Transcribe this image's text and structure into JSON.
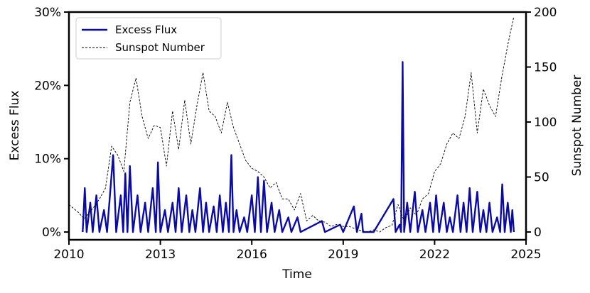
{
  "chart_data": {
    "type": "line",
    "xlabel": "Time",
    "ylabel": "Excess Flux",
    "y2label": "Sunspot Number",
    "xlim": [
      2010,
      2025
    ],
    "xticks": [
      2010,
      2013,
      2016,
      2019,
      2022,
      2025
    ],
    "ylim": [
      -1.06,
      30
    ],
    "yticks": [
      {
        "value": 0,
        "label": "0%"
      },
      {
        "value": 10,
        "label": "10%"
      },
      {
        "value": 20,
        "label": "20%"
      },
      {
        "value": 30,
        "label": "30%"
      }
    ],
    "y2lim": [
      -7.1,
      200
    ],
    "y2ticks": [
      0,
      50,
      100,
      150,
      200
    ],
    "legend": "upper left",
    "series": [
      {
        "name": "Excess Flux",
        "color": "#0a0aa8",
        "x": [
          2010.45,
          2010.52,
          2010.58,
          2010.7,
          2010.78,
          2010.9,
          2011.0,
          2011.15,
          2011.25,
          2011.45,
          2011.55,
          2011.7,
          2011.78,
          2011.85,
          2011.92,
          2012.0,
          2012.1,
          2012.25,
          2012.35,
          2012.5,
          2012.6,
          2012.75,
          2012.85,
          2012.92,
          2013.0,
          2013.15,
          2013.25,
          2013.4,
          2013.5,
          2013.6,
          2013.7,
          2013.85,
          2013.95,
          2014.05,
          2014.15,
          2014.3,
          2014.4,
          2014.5,
          2014.6,
          2014.75,
          2014.85,
          2014.95,
          2015.05,
          2015.15,
          2015.25,
          2015.33,
          2015.4,
          2015.5,
          2015.6,
          2015.75,
          2015.85,
          2016.0,
          2016.1,
          2016.2,
          2016.3,
          2016.4,
          2016.5,
          2016.65,
          2016.75,
          2016.9,
          2017.0,
          2017.2,
          2017.3,
          2017.5,
          2017.6,
          2018.3,
          2018.4,
          2018.9,
          2019.0,
          2019.35,
          2019.45,
          2019.6,
          2019.65,
          2020.0,
          2020.65,
          2020.72,
          2020.85,
          2020.9,
          2020.95,
          2021.0,
          2021.1,
          2021.2,
          2021.35,
          2021.45,
          2021.6,
          2021.7,
          2021.85,
          2021.95,
          2022.05,
          2022.15,
          2022.3,
          2022.4,
          2022.5,
          2022.6,
          2022.75,
          2022.85,
          2022.95,
          2023.05,
          2023.15,
          2023.25,
          2023.4,
          2023.5,
          2023.6,
          2023.7,
          2023.8,
          2023.9,
          2024.05,
          2024.15,
          2024.22,
          2024.3,
          2024.4,
          2024.5,
          2024.55,
          2024.6
        ],
        "values": [
          0,
          6,
          0,
          4,
          0,
          5,
          0,
          3,
          0,
          10.5,
          0,
          5,
          0,
          8,
          0,
          9,
          0,
          5,
          0,
          4,
          0,
          6,
          0,
          9.5,
          0,
          3,
          0,
          4,
          0,
          6,
          0,
          5,
          0,
          3,
          0,
          6,
          0,
          4,
          0,
          3.5,
          0,
          5,
          0,
          4,
          0,
          10.5,
          0,
          3,
          0,
          2,
          0,
          5,
          0,
          7.5,
          0,
          7,
          0,
          4,
          0,
          3,
          0,
          2,
          0,
          2,
          0,
          1.5,
          0,
          1,
          0,
          3.5,
          0,
          2.5,
          0,
          0,
          4.5,
          0,
          1,
          0,
          23.2,
          0,
          4,
          0,
          5.5,
          0,
          3,
          0,
          4,
          0,
          5,
          0,
          4,
          0,
          2,
          0,
          5,
          0,
          4,
          0,
          6,
          0,
          5.5,
          0,
          3,
          0,
          4,
          0,
          2,
          0,
          6.5,
          0,
          4,
          0,
          3,
          0
        ]
      },
      {
        "name": "Sunspot Number",
        "color": "#000000",
        "axis": "y2",
        "x": [
          2010.0,
          2010.3,
          2010.5,
          2010.8,
          2011.0,
          2011.2,
          2011.4,
          2011.6,
          2011.8,
          2012.0,
          2012.2,
          2012.4,
          2012.6,
          2012.8,
          2013.0,
          2013.2,
          2013.4,
          2013.6,
          2013.8,
          2014.0,
          2014.2,
          2014.4,
          2014.6,
          2014.8,
          2015.0,
          2015.2,
          2015.4,
          2015.6,
          2015.8,
          2016.0,
          2016.2,
          2016.4,
          2016.6,
          2016.8,
          2017.0,
          2017.2,
          2017.4,
          2017.6,
          2017.8,
          2018.0,
          2018.2,
          2018.4,
          2018.6,
          2018.8,
          2019.0,
          2019.2,
          2019.4,
          2019.6,
          2019.8,
          2020.0,
          2020.2,
          2020.4,
          2020.6,
          2020.8,
          2021.0,
          2021.2,
          2021.4,
          2021.6,
          2021.8,
          2022.0,
          2022.2,
          2022.4,
          2022.6,
          2022.8,
          2023.0,
          2023.2,
          2023.4,
          2023.6,
          2023.8,
          2024.0,
          2024.2,
          2024.4,
          2024.6
        ],
        "values": [
          25,
          18,
          12,
          22,
          30,
          40,
          78,
          70,
          55,
          118,
          140,
          105,
          85,
          97,
          95,
          60,
          110,
          75,
          120,
          80,
          115,
          145,
          110,
          105,
          90,
          118,
          95,
          80,
          65,
          58,
          55,
          50,
          40,
          45,
          30,
          30,
          20,
          35,
          10,
          15,
          10,
          9,
          5,
          7,
          5,
          5,
          3,
          1,
          0,
          2,
          0,
          4,
          6,
          25,
          10,
          22,
          15,
          30,
          35,
          55,
          62,
          80,
          90,
          85,
          105,
          145,
          90,
          130,
          115,
          105,
          140,
          170,
          196
        ]
      }
    ]
  }
}
